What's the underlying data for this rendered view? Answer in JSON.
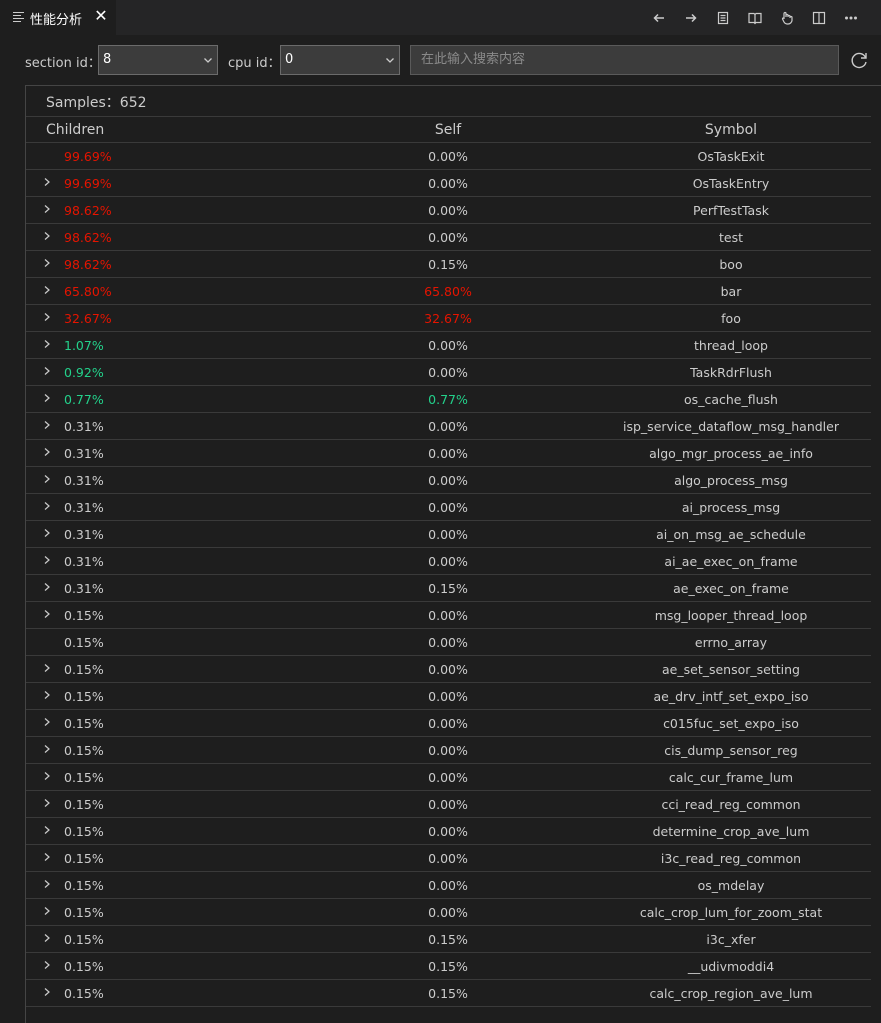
{
  "tab": {
    "title": "性能分析",
    "close_glyph": "✕"
  },
  "toolbar_icons": [
    "arrow-left-icon",
    "arrow-right-icon",
    "document-icon",
    "book-icon",
    "hand-icon",
    "split-editor-icon",
    "more-icon"
  ],
  "filters": {
    "section_label": "section id：",
    "section_value": "8",
    "cpu_label": "cpu id：",
    "cpu_value": "0",
    "search_placeholder": "在此输入搜索内容"
  },
  "colors": {
    "hot": "#e51400",
    "warm": "#23d18b",
    "normal": "#cccccc"
  },
  "table": {
    "samples_label": "Samples：",
    "samples_count": "652",
    "columns": {
      "children": "Children",
      "self": "Self",
      "symbol": "Symbol"
    },
    "rows": [
      {
        "children": "99.69%",
        "self": "0.00%",
        "symbol": "OsTaskExit",
        "expand": false,
        "cc": "hot",
        "sc": "normal"
      },
      {
        "children": "99.69%",
        "self": "0.00%",
        "symbol": "OsTaskEntry",
        "expand": true,
        "cc": "hot",
        "sc": "normal"
      },
      {
        "children": "98.62%",
        "self": "0.00%",
        "symbol": "PerfTestTask",
        "expand": true,
        "cc": "hot",
        "sc": "normal"
      },
      {
        "children": "98.62%",
        "self": "0.00%",
        "symbol": "test",
        "expand": true,
        "cc": "hot",
        "sc": "normal"
      },
      {
        "children": "98.62%",
        "self": "0.15%",
        "symbol": "boo",
        "expand": true,
        "cc": "hot",
        "sc": "normal"
      },
      {
        "children": "65.80%",
        "self": "65.80%",
        "symbol": "bar",
        "expand": true,
        "cc": "hot",
        "sc": "hot"
      },
      {
        "children": "32.67%",
        "self": "32.67%",
        "symbol": "foo",
        "expand": true,
        "cc": "hot",
        "sc": "hot"
      },
      {
        "children": "1.07%",
        "self": "0.00%",
        "symbol": "thread_loop",
        "expand": true,
        "cc": "warm",
        "sc": "normal"
      },
      {
        "children": "0.92%",
        "self": "0.00%",
        "symbol": "TaskRdrFlush",
        "expand": true,
        "cc": "warm",
        "sc": "normal"
      },
      {
        "children": "0.77%",
        "self": "0.77%",
        "symbol": "os_cache_flush",
        "expand": true,
        "cc": "warm",
        "sc": "warm"
      },
      {
        "children": "0.31%",
        "self": "0.00%",
        "symbol": "isp_service_dataflow_msg_handler",
        "expand": true,
        "cc": "normal",
        "sc": "normal"
      },
      {
        "children": "0.31%",
        "self": "0.00%",
        "symbol": "algo_mgr_process_ae_info",
        "expand": true,
        "cc": "normal",
        "sc": "normal"
      },
      {
        "children": "0.31%",
        "self": "0.00%",
        "symbol": "algo_process_msg",
        "expand": true,
        "cc": "normal",
        "sc": "normal"
      },
      {
        "children": "0.31%",
        "self": "0.00%",
        "symbol": "ai_process_msg",
        "expand": true,
        "cc": "normal",
        "sc": "normal"
      },
      {
        "children": "0.31%",
        "self": "0.00%",
        "symbol": "ai_on_msg_ae_schedule",
        "expand": true,
        "cc": "normal",
        "sc": "normal"
      },
      {
        "children": "0.31%",
        "self": "0.00%",
        "symbol": "ai_ae_exec_on_frame",
        "expand": true,
        "cc": "normal",
        "sc": "normal"
      },
      {
        "children": "0.31%",
        "self": "0.15%",
        "symbol": "ae_exec_on_frame",
        "expand": true,
        "cc": "normal",
        "sc": "normal"
      },
      {
        "children": "0.15%",
        "self": "0.00%",
        "symbol": "msg_looper_thread_loop",
        "expand": true,
        "cc": "normal",
        "sc": "normal"
      },
      {
        "children": "0.15%",
        "self": "0.00%",
        "symbol": "errno_array",
        "expand": false,
        "cc": "normal",
        "sc": "normal"
      },
      {
        "children": "0.15%",
        "self": "0.00%",
        "symbol": "ae_set_sensor_setting",
        "expand": true,
        "cc": "normal",
        "sc": "normal"
      },
      {
        "children": "0.15%",
        "self": "0.00%",
        "symbol": "ae_drv_intf_set_expo_iso",
        "expand": true,
        "cc": "normal",
        "sc": "normal"
      },
      {
        "children": "0.15%",
        "self": "0.00%",
        "symbol": "c015fuc_set_expo_iso",
        "expand": true,
        "cc": "normal",
        "sc": "normal"
      },
      {
        "children": "0.15%",
        "self": "0.00%",
        "symbol": "cis_dump_sensor_reg",
        "expand": true,
        "cc": "normal",
        "sc": "normal"
      },
      {
        "children": "0.15%",
        "self": "0.00%",
        "symbol": "calc_cur_frame_lum",
        "expand": true,
        "cc": "normal",
        "sc": "normal"
      },
      {
        "children": "0.15%",
        "self": "0.00%",
        "symbol": "cci_read_reg_common",
        "expand": true,
        "cc": "normal",
        "sc": "normal"
      },
      {
        "children": "0.15%",
        "self": "0.00%",
        "symbol": "determine_crop_ave_lum",
        "expand": true,
        "cc": "normal",
        "sc": "normal"
      },
      {
        "children": "0.15%",
        "self": "0.00%",
        "symbol": "i3c_read_reg_common",
        "expand": true,
        "cc": "normal",
        "sc": "normal"
      },
      {
        "children": "0.15%",
        "self": "0.00%",
        "symbol": "os_mdelay",
        "expand": true,
        "cc": "normal",
        "sc": "normal"
      },
      {
        "children": "0.15%",
        "self": "0.00%",
        "symbol": "calc_crop_lum_for_zoom_stat",
        "expand": true,
        "cc": "normal",
        "sc": "normal"
      },
      {
        "children": "0.15%",
        "self": "0.15%",
        "symbol": "i3c_xfer",
        "expand": true,
        "cc": "normal",
        "sc": "normal"
      },
      {
        "children": "0.15%",
        "self": "0.15%",
        "symbol": "__udivmoddi4",
        "expand": true,
        "cc": "normal",
        "sc": "normal"
      },
      {
        "children": "0.15%",
        "self": "0.15%",
        "symbol": "calc_crop_region_ave_lum",
        "expand": true,
        "cc": "normal",
        "sc": "normal"
      }
    ]
  }
}
